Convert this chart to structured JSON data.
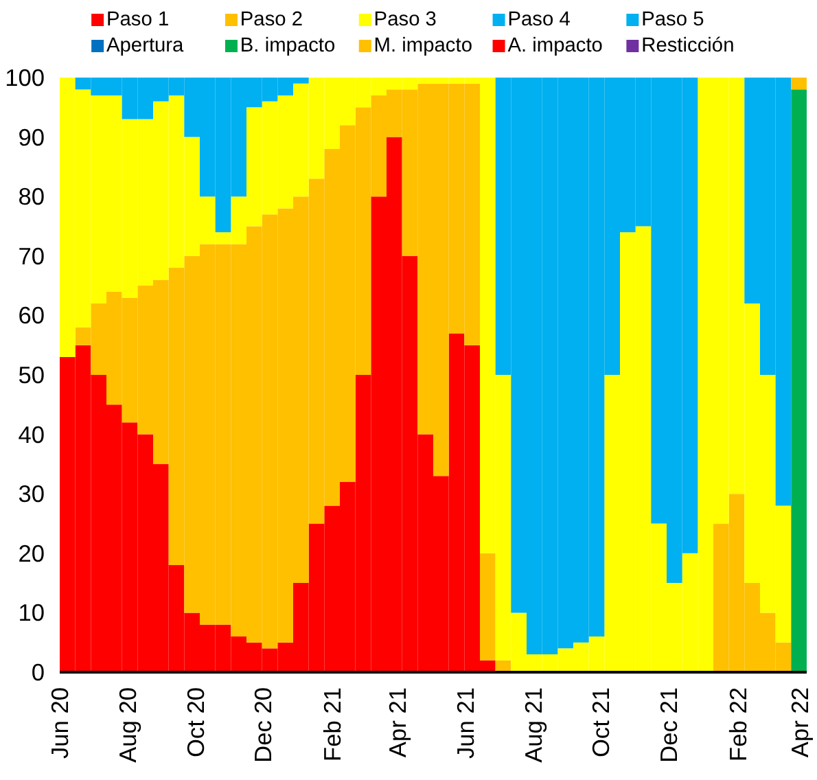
{
  "chart_data": {
    "type": "bar",
    "stacked": true,
    "legend": "top",
    "grid": false,
    "x": [
      "2020-06-08",
      "2020-06-22",
      "2020-07-06",
      "2020-07-20",
      "2020-08-03",
      "2020-08-17",
      "2020-08-31",
      "2020-09-14",
      "2020-09-28",
      "2020-10-12",
      "2020-10-26",
      "2020-11-09",
      "2020-11-23",
      "2020-12-07",
      "2020-12-21",
      "2021-01-04",
      "2021-01-18",
      "2021-02-01",
      "2021-02-15",
      "2021-03-01",
      "2021-03-15",
      "2021-03-29",
      "2021-04-12",
      "2021-04-26",
      "2021-05-10",
      "2021-05-24",
      "2021-06-07",
      "2021-06-21",
      "2021-07-05",
      "2021-07-19",
      "2021-08-02",
      "2021-08-16",
      "2021-08-30",
      "2021-09-13",
      "2021-09-27",
      "2021-10-11",
      "2021-10-25",
      "2021-11-08",
      "2021-11-22",
      "2021-12-06",
      "2021-12-20",
      "2022-01-03",
      "2022-01-17",
      "2022-01-31",
      "2022-02-14",
      "2022-02-28",
      "2022-03-14",
      "2022-03-28"
    ],
    "xlim": [
      "2020-06-01",
      "2022-04-04"
    ],
    "xticks": [
      {
        "value": "2020-06-01",
        "label": "Jun 20"
      },
      {
        "value": "2020-08-01",
        "label": "Aug 20"
      },
      {
        "value": "2020-10-01",
        "label": "Oct 20"
      },
      {
        "value": "2020-12-01",
        "label": "Dec 20"
      },
      {
        "value": "2021-02-01",
        "label": "Feb 21"
      },
      {
        "value": "2021-04-01",
        "label": "Apr 21"
      },
      {
        "value": "2021-06-01",
        "label": "Jun 21"
      },
      {
        "value": "2021-08-01",
        "label": "Aug 21"
      },
      {
        "value": "2021-10-01",
        "label": "Oct 21"
      },
      {
        "value": "2021-12-01",
        "label": "Dec 21"
      },
      {
        "value": "2022-02-01",
        "label": "Feb 22"
      },
      {
        "value": "2022-04-01",
        "label": "Apr 22"
      }
    ],
    "ylim": [
      0,
      100
    ],
    "yticks": [
      0,
      10,
      20,
      30,
      40,
      50,
      60,
      70,
      80,
      90,
      100
    ],
    "series": [
      {
        "name": "Paso 1",
        "color": "#ff0000",
        "values": [
          53,
          55,
          50,
          45,
          42,
          40,
          35,
          18,
          10,
          8,
          8,
          6,
          5,
          4,
          5,
          15,
          25,
          28,
          32,
          50,
          80,
          90,
          70,
          40,
          33,
          57,
          55,
          2,
          0,
          0,
          0,
          0,
          0,
          0,
          0,
          0,
          0,
          0,
          0,
          0,
          0,
          0,
          0,
          0,
          0,
          0,
          0,
          0
        ]
      },
      {
        "name": "Paso 2",
        "color": "#ffc000",
        "values": [
          0,
          3,
          12,
          19,
          21,
          25,
          31,
          50,
          60,
          64,
          64,
          66,
          70,
          73,
          73,
          65,
          58,
          60,
          60,
          45,
          17,
          8,
          28,
          59,
          66,
          42,
          44,
          18,
          2,
          0,
          0,
          0,
          0,
          0,
          0,
          0,
          0,
          0,
          0,
          0,
          0,
          0,
          25,
          30,
          15,
          10,
          5,
          0
        ]
      },
      {
        "name": "Paso 3",
        "color": "#ffff00",
        "values": [
          47,
          40,
          35,
          33,
          30,
          28,
          30,
          29,
          20,
          8,
          2,
          8,
          20,
          19,
          19,
          19,
          17,
          12,
          8,
          5,
          3,
          2,
          2,
          1,
          1,
          1,
          1,
          80,
          48,
          10,
          3,
          3,
          4,
          5,
          6,
          50,
          74,
          75,
          25,
          15,
          20,
          100,
          75,
          70,
          47,
          40,
          23,
          0
        ]
      },
      {
        "name": "Paso 4",
        "color": "#00b0f0",
        "values": [
          0,
          2,
          3,
          3,
          7,
          7,
          4,
          3,
          10,
          20,
          26,
          20,
          5,
          4,
          3,
          1,
          0,
          0,
          0,
          0,
          0,
          0,
          0,
          0,
          0,
          0,
          0,
          0,
          50,
          90,
          97,
          97,
          96,
          95,
          94,
          50,
          26,
          25,
          75,
          85,
          80,
          0,
          0,
          0,
          38,
          50,
          72,
          0
        ]
      },
      {
        "name": "Paso 5",
        "color": "#00b0f0",
        "values": [
          0,
          0,
          0,
          0,
          0,
          0,
          0,
          0,
          0,
          0,
          0,
          0,
          0,
          0,
          0,
          0,
          0,
          0,
          0,
          0,
          0,
          0,
          0,
          0,
          0,
          0,
          0,
          0,
          0,
          0,
          0,
          0,
          0,
          0,
          0,
          0,
          0,
          0,
          0,
          0,
          0,
          0,
          0,
          0,
          0,
          0,
          0,
          0
        ]
      },
      {
        "name": "Apertura",
        "color": "#0070c0",
        "values": [
          0,
          0,
          0,
          0,
          0,
          0,
          0,
          0,
          0,
          0,
          0,
          0,
          0,
          0,
          0,
          0,
          0,
          0,
          0,
          0,
          0,
          0,
          0,
          0,
          0,
          0,
          0,
          0,
          0,
          0,
          0,
          0,
          0,
          0,
          0,
          0,
          0,
          0,
          0,
          0,
          0,
          0,
          0,
          0,
          0,
          0,
          0,
          0
        ]
      },
      {
        "name": "B. impacto",
        "color": "#00b050",
        "values": [
          0,
          0,
          0,
          0,
          0,
          0,
          0,
          0,
          0,
          0,
          0,
          0,
          0,
          0,
          0,
          0,
          0,
          0,
          0,
          0,
          0,
          0,
          0,
          0,
          0,
          0,
          0,
          0,
          0,
          0,
          0,
          0,
          0,
          0,
          0,
          0,
          0,
          0,
          0,
          0,
          0,
          0,
          0,
          0,
          0,
          0,
          0,
          98
        ]
      },
      {
        "name": "M. impacto",
        "color": "#ffc000",
        "values": [
          0,
          0,
          0,
          0,
          0,
          0,
          0,
          0,
          0,
          0,
          0,
          0,
          0,
          0,
          0,
          0,
          0,
          0,
          0,
          0,
          0,
          0,
          0,
          0,
          0,
          0,
          0,
          0,
          0,
          0,
          0,
          0,
          0,
          0,
          0,
          0,
          0,
          0,
          0,
          0,
          0,
          0,
          0,
          0,
          0,
          0,
          0,
          2
        ]
      },
      {
        "name": "A. impacto",
        "color": "#ff0000",
        "values": [
          0,
          0,
          0,
          0,
          0,
          0,
          0,
          0,
          0,
          0,
          0,
          0,
          0,
          0,
          0,
          0,
          0,
          0,
          0,
          0,
          0,
          0,
          0,
          0,
          0,
          0,
          0,
          0,
          0,
          0,
          0,
          0,
          0,
          0,
          0,
          0,
          0,
          0,
          0,
          0,
          0,
          0,
          0,
          0,
          0,
          0,
          0,
          0
        ]
      },
      {
        "name": "Resticción",
        "color": "#7030a0",
        "values": [
          0,
          0,
          0,
          0,
          0,
          0,
          0,
          0,
          0,
          0,
          0,
          0,
          0,
          0,
          0,
          0,
          0,
          0,
          0,
          0,
          0,
          0,
          0,
          0,
          0,
          0,
          0,
          0,
          0,
          0,
          0,
          0,
          0,
          0,
          0,
          0,
          0,
          0,
          0,
          0,
          0,
          0,
          0,
          0,
          0,
          0,
          0,
          0
        ]
      }
    ]
  }
}
